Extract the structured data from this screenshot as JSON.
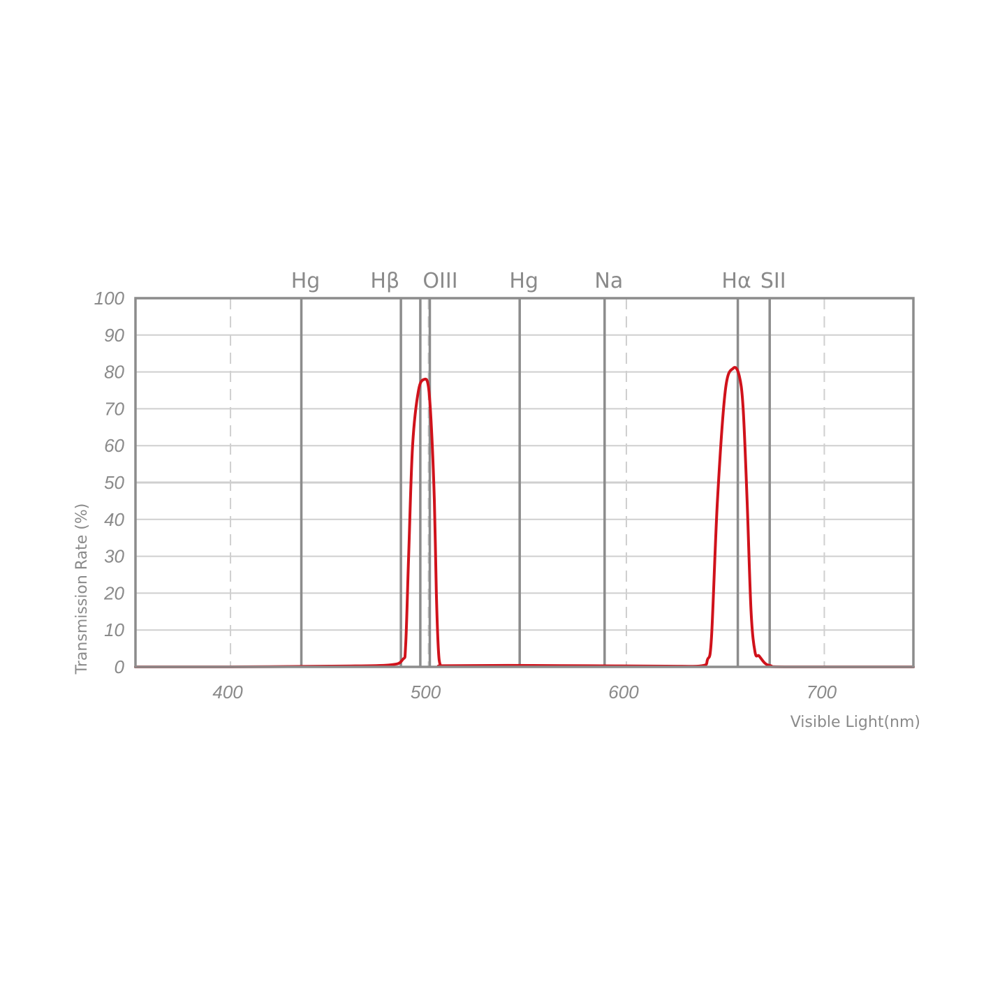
{
  "chart_data": {
    "type": "line",
    "title": "",
    "xlabel": "Visible Light(nm)",
    "ylabel": "Transmission Rate (%)",
    "xlim": [
      352,
      745
    ],
    "ylim": [
      0,
      100
    ],
    "x_ticks": [
      400,
      500,
      600,
      700
    ],
    "x_tick_labels": [
      "400",
      "500",
      "600",
      "700"
    ],
    "y_ticks": [
      0,
      10,
      20,
      30,
      40,
      50,
      60,
      70,
      80,
      90,
      100
    ],
    "y_tick_labels": [
      "0",
      "10",
      "20",
      "30",
      "40",
      "50",
      "60",
      "70",
      "80",
      "90",
      "100"
    ],
    "grid": true,
    "emission_lines": [
      {
        "label": "Hg",
        "x": 435.8
      },
      {
        "label": "Hβ",
        "x": 486.1
      },
      {
        "label": "",
        "x": 495.9
      },
      {
        "label": "OIII",
        "x": 500.7
      },
      {
        "label": "Hg",
        "x": 546.1
      },
      {
        "label": "Na",
        "x": 589.0
      },
      {
        "label": "Hα",
        "x": 656.3
      },
      {
        "label": "SII",
        "x": 672.4
      }
    ],
    "series": [
      {
        "color": "#d0121b",
        "x": [
          352,
          400,
          450,
          480,
          487,
          488.5,
          490,
          492,
          495,
          498,
          500,
          501.5,
          503,
          504,
          505,
          506,
          508,
          540,
          580,
          620,
          638,
          641,
          643,
          646,
          650,
          654,
          657,
          659,
          661,
          663,
          665,
          667,
          670,
          673,
          680,
          745
        ],
        "y": [
          0,
          0,
          0.2,
          0.5,
          2,
          6,
          30,
          60,
          75,
          78,
          76,
          65,
          45,
          20,
          5,
          0.5,
          0.3,
          0.4,
          0.3,
          0.2,
          0.3,
          2,
          8,
          45,
          75,
          81,
          79,
          70,
          45,
          15,
          4,
          3,
          1,
          0.3,
          0,
          0
        ]
      }
    ],
    "colors": {
      "curve": "#d0121b",
      "frame": "#8c8c8c",
      "grid": "#cfcfcf",
      "emission_line": "#8c8c8c",
      "text": "#8a8a8a"
    }
  }
}
